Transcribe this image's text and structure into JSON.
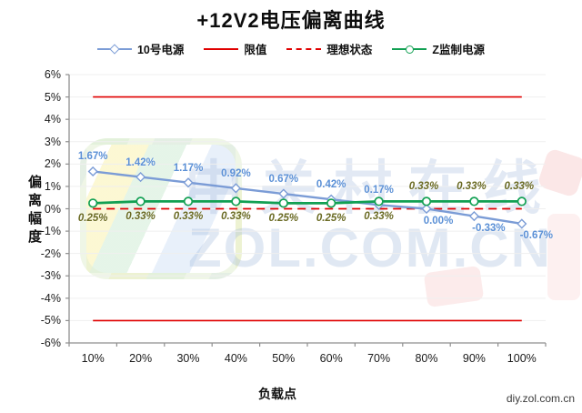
{
  "title": "+12V2电压偏离曲线",
  "legend": {
    "items": [
      {
        "label": "10号电源",
        "color": "#7b9cd6",
        "marker": "diamond",
        "dash": false
      },
      {
        "label": "限值",
        "color": "#e00000",
        "marker": "none",
        "dash": false
      },
      {
        "label": "理想状态",
        "color": "#e00000",
        "marker": "none",
        "dash": true
      },
      {
        "label": "Z监制电源",
        "color": "#12a053",
        "marker": "circle",
        "dash": false
      }
    ]
  },
  "axes": {
    "y_title": "偏离幅度",
    "x_title": "负载点",
    "y_ticks": [
      "6%",
      "5%",
      "4%",
      "3%",
      "2%",
      "1%",
      "0%",
      "-1%",
      "-2%",
      "-3%",
      "-4%",
      "-5%",
      "-6%"
    ],
    "x_ticks": [
      "10%",
      "20%",
      "30%",
      "40%",
      "50%",
      "60%",
      "70%",
      "80%",
      "90%",
      "100%"
    ]
  },
  "watermark": {
    "line1": "中关村在线",
    "line2": "ZOL.COM.CN"
  },
  "footer": {
    "site": "diy.zol.com.cn"
  },
  "chart_data": {
    "type": "line",
    "title": "+12V2电压偏离曲线",
    "xlabel": "负载点",
    "ylabel": "偏离幅度",
    "categories": [
      "10%",
      "20%",
      "30%",
      "40%",
      "50%",
      "60%",
      "70%",
      "80%",
      "90%",
      "100%"
    ],
    "ylim": [
      -6,
      6
    ],
    "ytick_step": 1,
    "grid": "horizontal",
    "legend_position": "top",
    "series": [
      {
        "name": "10号电源",
        "type": "line",
        "marker": "diamond",
        "color": "#7b9cd6",
        "label_color": "#5b90d6",
        "values": [
          1.67,
          1.42,
          1.17,
          0.92,
          0.67,
          0.42,
          0.17,
          0.0,
          -0.33,
          -0.67
        ],
        "labels": [
          "1.67%",
          "1.42%",
          "1.17%",
          "0.92%",
          "0.67%",
          "0.42%",
          "0.17%",
          "0.00%",
          "-0.33%",
          "-0.67%"
        ]
      },
      {
        "name": "限值",
        "type": "limit-lines",
        "style": "solid",
        "color": "#e00000",
        "values": [
          5,
          -5
        ]
      },
      {
        "name": "理想状态",
        "type": "reference-line",
        "style": "dashed",
        "color": "#e00000",
        "value": 0
      },
      {
        "name": "Z监制电源",
        "type": "line",
        "marker": "circle",
        "color": "#12a053",
        "label_color": "#6b6b24",
        "values": [
          0.25,
          0.33,
          0.33,
          0.33,
          0.25,
          0.25,
          0.33,
          0.33,
          0.33,
          0.33
        ],
        "labels": [
          "0.25%",
          "0.33%",
          "0.33%",
          "0.33%",
          "0.25%",
          "0.25%",
          "0.33%",
          "0.33%",
          "0.33%",
          "0.33%"
        ]
      }
    ]
  }
}
